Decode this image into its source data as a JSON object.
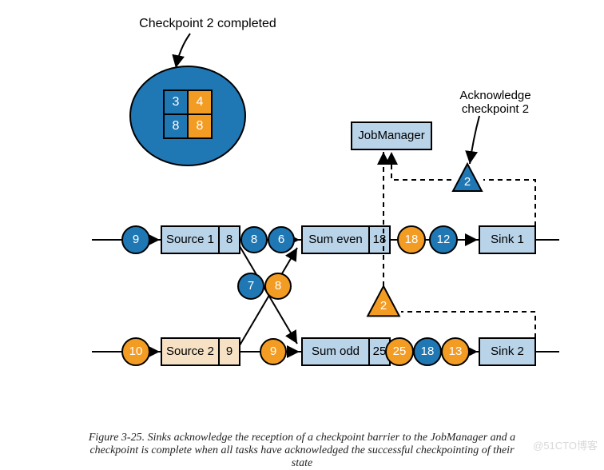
{
  "type": "flowchart",
  "background_color": "#ffffff",
  "colors": {
    "blue": "#1f77b4",
    "blueMid": "#2b7bbf",
    "boxFill": "#b9d3e8",
    "boxFill2": "#f6e1c5",
    "orange": "#f39c24",
    "stroke": "#000000"
  },
  "checkpoint": {
    "label": "Checkpoint 2 completed",
    "cells": [
      [
        "3",
        "4"
      ],
      [
        "8",
        "8"
      ]
    ]
  },
  "labels": {
    "jobManager": "JobManager",
    "ack": "Acknowledge\ncheckpoint 2",
    "source1": "Source 1",
    "source1State": "8",
    "source2": "Source 2",
    "source2State": "9",
    "sumEven": "Sum even",
    "sumEvenState": "18",
    "sumOdd": "Sum odd",
    "sumOddState": "25",
    "sink1": "Sink 1",
    "sink2": "Sink 2"
  },
  "events": {
    "preSource1": "9",
    "preSource2": "10",
    "afterSource1a": "8",
    "afterSource1b": "6",
    "crossDown": "7",
    "crossUp": "8",
    "afterSource2": "9",
    "afterSumEven1": "18",
    "afterSumEven2": "12",
    "afterSumOdd1": "25",
    "afterSumOdd2": "18",
    "afterSumOdd3": "13"
  },
  "barriers": {
    "triangle1": "2",
    "triangle2": "2"
  },
  "caption": {
    "line1": "Figure 3-25. Sinks acknowledge the reception of a checkpoint barrier to the JobManager and a",
    "line2": "checkpoint is complete when all tasks have acknowledged the successful checkpointing of their",
    "line3": "state"
  },
  "watermark": "@51CTO博客"
}
